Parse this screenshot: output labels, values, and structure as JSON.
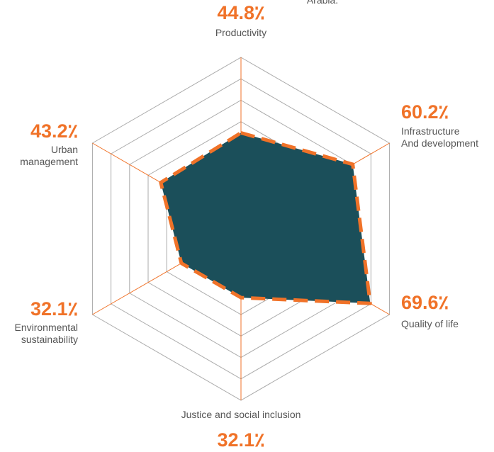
{
  "chart_data": {
    "type": "radar",
    "annotation": "Arabia.",
    "categories": [
      "Productivity",
      "Infrastructure\nAnd development",
      "Quality of life",
      "Justice and social inclusion",
      "Environmental\nsustainability",
      "Urban\nmanagement"
    ],
    "values": [
      44.8,
      60.2,
      69.6,
      32.1,
      32.1,
      43.2
    ],
    "value_labels": [
      "44.8٪",
      "60.2٪",
      "69.6٪",
      "32.1٪",
      "32.1٪",
      "43.2٪"
    ],
    "rlim": [
      0,
      80
    ],
    "rticks": [
      10,
      20,
      30,
      40,
      50,
      60,
      70,
      80
    ],
    "color": "#1b4f5a",
    "line_color": "#f07228",
    "axis_color": "#f07228",
    "grid": true
  }
}
